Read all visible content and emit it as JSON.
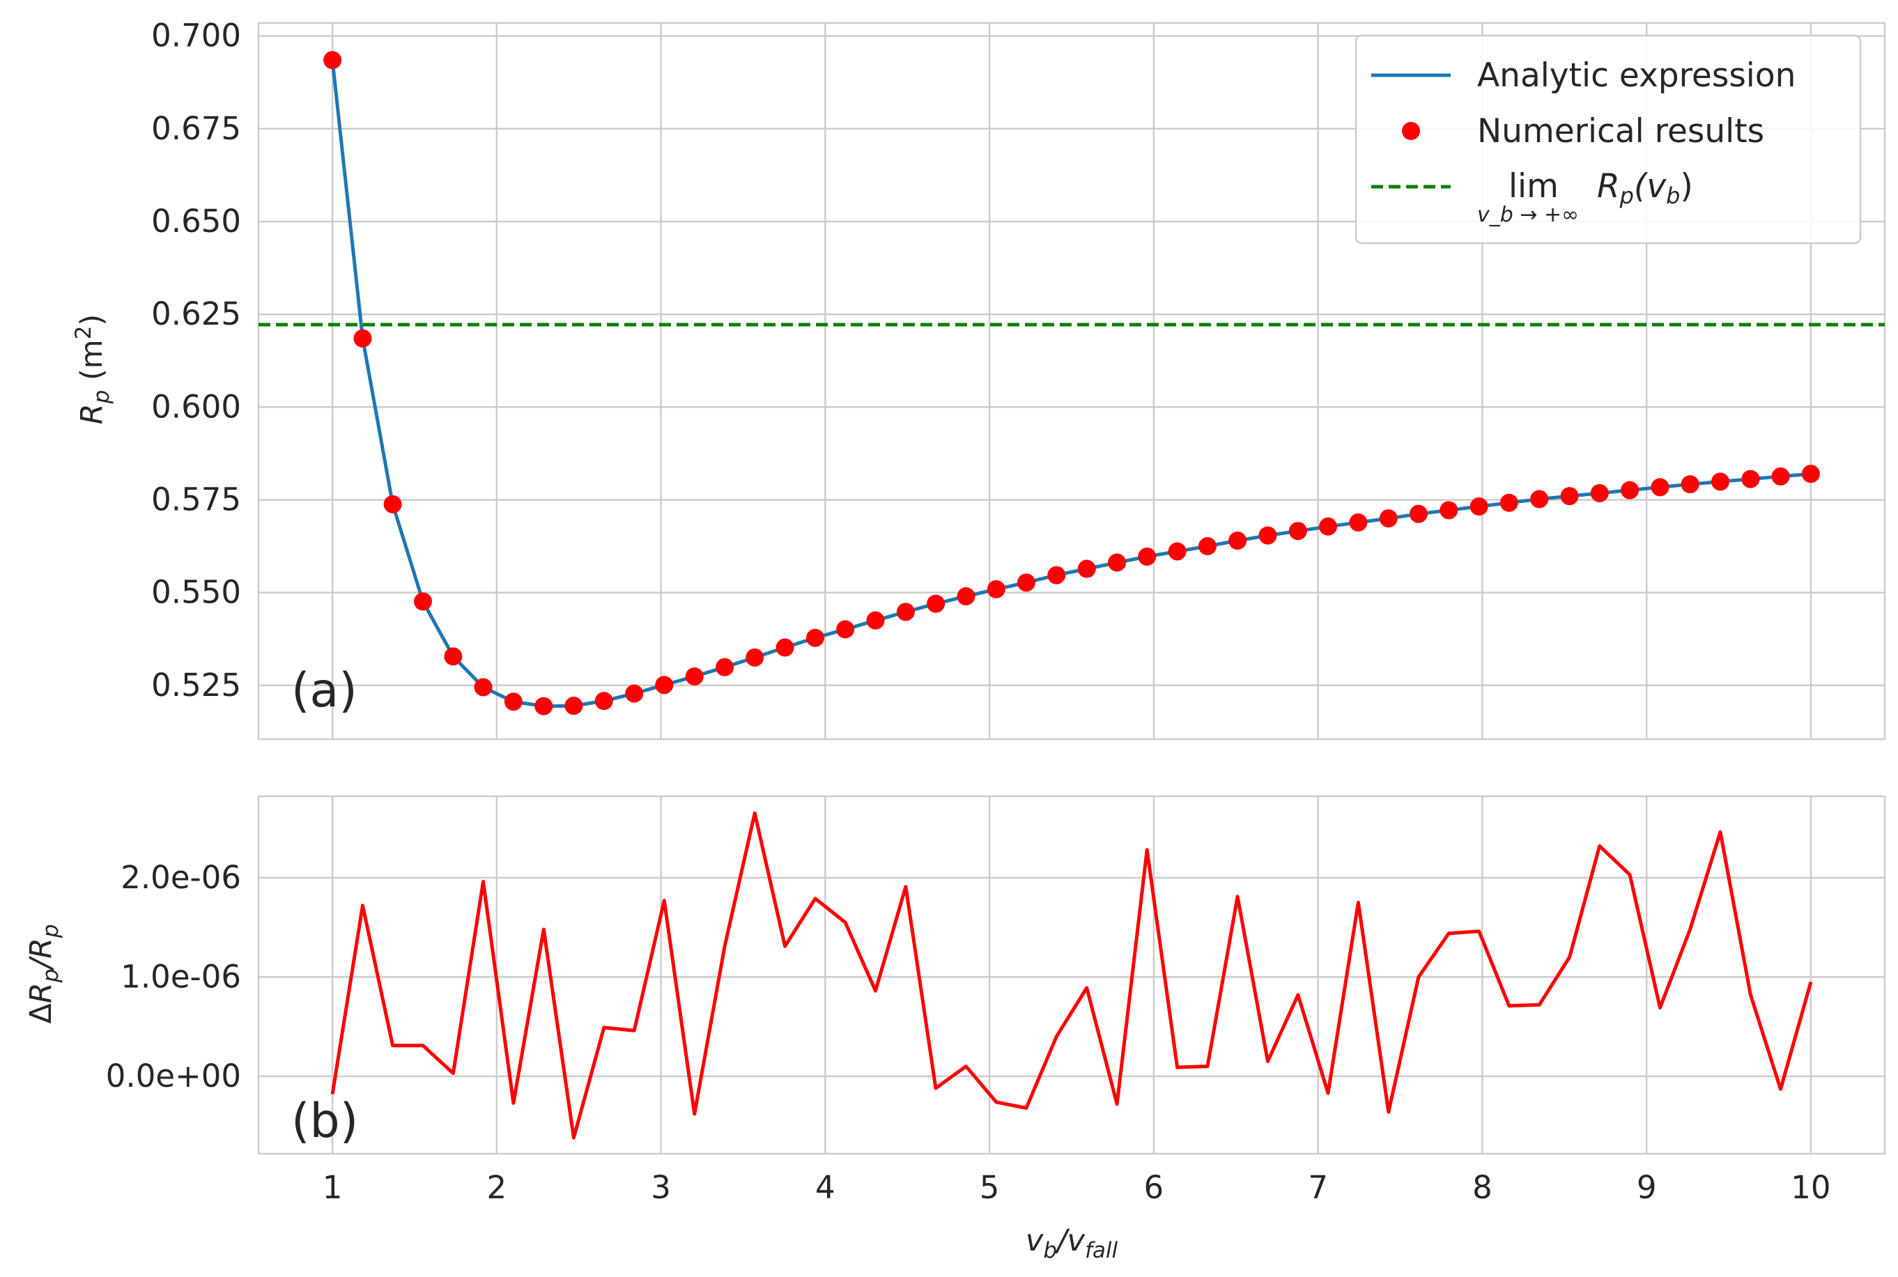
{
  "chart_data": [
    {
      "type": "line",
      "panel_label": "(a)",
      "xlabel": "",
      "ylabel": "R_p (m^2)",
      "xlim": [
        0.55,
        10.45
      ],
      "ylim": [
        0.5105,
        0.7035
      ],
      "xticks": [
        1,
        2,
        3,
        4,
        5,
        6,
        7,
        8,
        9,
        10
      ],
      "yticks": [
        0.525,
        0.55,
        0.575,
        0.6,
        0.625,
        0.65,
        0.675,
        0.7
      ],
      "ytick_labels": [
        "0.525",
        "0.550",
        "0.575",
        "0.600",
        "0.625",
        "0.650",
        "0.675",
        "0.700"
      ],
      "grid": true,
      "legend_position": "top-right",
      "series": [
        {
          "name": "Analytic expression",
          "kind": "line",
          "color": "#1f77b4",
          "x": [
            1.0,
            1.184,
            1.367,
            1.551,
            1.735,
            1.918,
            2.102,
            2.286,
            2.469,
            2.653,
            2.837,
            3.02,
            3.204,
            3.388,
            3.571,
            3.755,
            3.939,
            4.122,
            4.306,
            4.49,
            4.673,
            4.857,
            5.041,
            5.224,
            5.408,
            5.592,
            5.776,
            5.959,
            6.143,
            6.327,
            6.51,
            6.694,
            6.878,
            7.061,
            7.245,
            7.429,
            7.612,
            7.796,
            7.98,
            8.163,
            8.347,
            8.531,
            8.714,
            8.898,
            9.082,
            9.265,
            9.449,
            9.633,
            9.816,
            10.0
          ],
          "y": [
            0.6935,
            0.6185,
            0.5738,
            0.5476,
            0.5328,
            0.5245,
            0.5206,
            0.5194,
            0.5195,
            0.5208,
            0.5228,
            0.5251,
            0.5274,
            0.5299,
            0.5325,
            0.5352,
            0.5378,
            0.5401,
            0.5425,
            0.5448,
            0.547,
            0.549,
            0.5509,
            0.5527,
            0.5547,
            0.5564,
            0.5581,
            0.5597,
            0.5611,
            0.5625,
            0.564,
            0.5654,
            0.5666,
            0.5678,
            0.5689,
            0.57,
            0.5712,
            0.5722,
            0.5732,
            0.5742,
            0.5752,
            0.576,
            0.5768,
            0.5776,
            0.5784,
            0.5792,
            0.5799,
            0.5806,
            0.5813,
            0.582
          ]
        },
        {
          "name": "Numerical results",
          "kind": "scatter",
          "color": "#ff0000",
          "x": [
            1.0,
            1.184,
            1.367,
            1.551,
            1.735,
            1.918,
            2.102,
            2.286,
            2.469,
            2.653,
            2.837,
            3.02,
            3.204,
            3.388,
            3.571,
            3.755,
            3.939,
            4.122,
            4.306,
            4.49,
            4.673,
            4.857,
            5.041,
            5.224,
            5.408,
            5.592,
            5.776,
            5.959,
            6.143,
            6.327,
            6.51,
            6.694,
            6.878,
            7.061,
            7.245,
            7.429,
            7.612,
            7.796,
            7.98,
            8.163,
            8.347,
            8.531,
            8.714,
            8.898,
            9.082,
            9.265,
            9.449,
            9.633,
            9.816,
            10.0
          ],
          "y": [
            0.6935,
            0.6185,
            0.5738,
            0.5476,
            0.5328,
            0.5245,
            0.5206,
            0.5194,
            0.5195,
            0.5208,
            0.5228,
            0.5251,
            0.5274,
            0.5299,
            0.5325,
            0.5352,
            0.5378,
            0.5401,
            0.5425,
            0.5448,
            0.547,
            0.549,
            0.5509,
            0.5527,
            0.5547,
            0.5564,
            0.5581,
            0.5597,
            0.5611,
            0.5625,
            0.564,
            0.5654,
            0.5666,
            0.5678,
            0.5689,
            0.57,
            0.5712,
            0.5722,
            0.5732,
            0.5742,
            0.5752,
            0.576,
            0.5768,
            0.5776,
            0.5784,
            0.5792,
            0.5799,
            0.5806,
            0.5813,
            0.582
          ]
        },
        {
          "name": "lim R_p(v_b), v_b → +∞",
          "kind": "hline",
          "color": "#008000",
          "y": 0.6222
        }
      ],
      "legend": {
        "entries": [
          {
            "label": "Analytic expression"
          },
          {
            "label": "Numerical results"
          },
          {
            "label_main": "lim",
            "label_expr": "R",
            "label_expr_sub": "p",
            "label_expr_tail": "(v",
            "label_expr_sub2": "b",
            "label_expr_close": ")",
            "label_under": "v_b → +∞"
          }
        ]
      },
      "ylabel_parts": {
        "R": "R",
        "sub": "p",
        "unit_open": " (m",
        "sup": "2",
        "unit_close": ")"
      }
    },
    {
      "type": "line",
      "panel_label": "(b)",
      "xlabel": "v_b/v_fall",
      "ylabel": "ΔR_p/R_p",
      "xlim": [
        0.55,
        10.45
      ],
      "ylim": [
        -7.8e-07,
        2.82e-06
      ],
      "xticks": [
        1,
        2,
        3,
        4,
        5,
        6,
        7,
        8,
        9,
        10
      ],
      "xtick_labels": [
        "1",
        "2",
        "3",
        "4",
        "5",
        "6",
        "7",
        "8",
        "9",
        "10"
      ],
      "yticks": [
        0.0,
        1e-06,
        2e-06
      ],
      "ytick_labels": [
        "0.0e+00",
        "1.0e-06",
        "2.0e-06"
      ],
      "grid": true,
      "series": [
        {
          "name": "",
          "kind": "line",
          "color": "#ff0000",
          "x": [
            1.0,
            1.184,
            1.367,
            1.551,
            1.735,
            1.918,
            2.102,
            2.286,
            2.469,
            2.653,
            2.837,
            3.02,
            3.204,
            3.388,
            3.571,
            3.755,
            3.939,
            4.122,
            4.306,
            4.49,
            4.673,
            4.857,
            5.041,
            5.224,
            5.408,
            5.592,
            5.776,
            5.959,
            6.143,
            6.327,
            6.51,
            6.694,
            6.878,
            7.061,
            7.245,
            7.429,
            7.612,
            7.796,
            7.98,
            8.163,
            8.347,
            8.531,
            8.714,
            8.898,
            9.082,
            9.265,
            9.449,
            9.633,
            9.816,
            10.0
          ],
          "y": [
            -1.8e-07,
            1.72e-06,
            3.1e-07,
            3.1e-07,
            3e-08,
            1.96e-06,
            -2.7e-07,
            1.48e-06,
            -6.2e-07,
            4.9e-07,
            4.6e-07,
            1.77e-06,
            -3.8e-07,
            1.31e-06,
            2.65e-06,
            1.31e-06,
            1.79e-06,
            1.55e-06,
            8.6e-07,
            1.91e-06,
            -1.2e-07,
            1e-07,
            -2.6e-07,
            -3.2e-07,
            4e-07,
            8.9e-07,
            -2.8e-07,
            2.28e-06,
            9e-08,
            1e-07,
            1.81e-06,
            1.5e-07,
            8.2e-07,
            -1.7e-07,
            1.75e-06,
            -3.6e-07,
            1e-06,
            1.44e-06,
            1.46e-06,
            7.1e-07,
            7.2e-07,
            1.2e-06,
            2.32e-06,
            2.03e-06,
            6.9e-07,
            1.48e-06,
            2.46e-06,
            8.2e-07,
            -1.3e-07,
            9.5e-07
          ]
        }
      ],
      "ylabel_parts": {
        "delta": "Δ",
        "R": "R",
        "sub": "p",
        "slash": "/",
        "R2": "R",
        "sub2": "p"
      },
      "xlabel_parts": {
        "v": "v",
        "sub": "b",
        "slash": "/",
        "v2": "v",
        "sub2": "fall"
      }
    }
  ]
}
